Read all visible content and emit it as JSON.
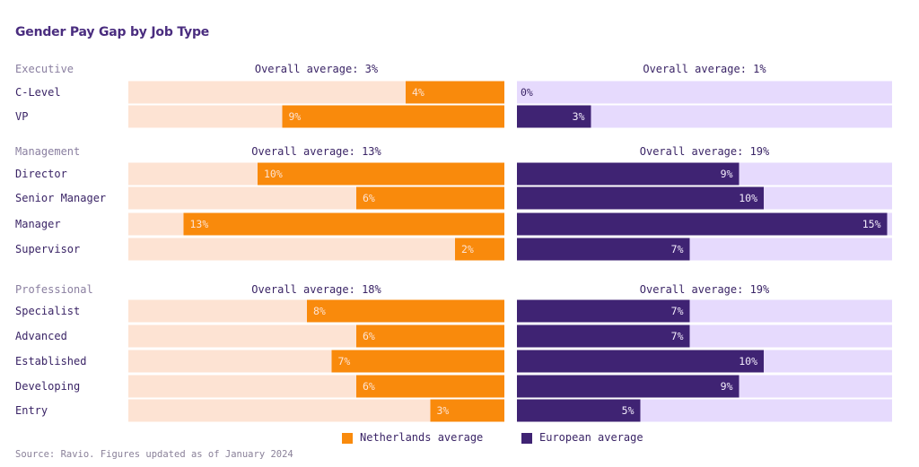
{
  "title": "Gender Pay Gap by Job Type",
  "legend": {
    "netherlands": "Netherlands average",
    "european": "European average"
  },
  "source": "Source: Ravio. Figures updated as of January 2024",
  "colors": {
    "nl_bar": "#f98a0c",
    "nl_track": "#fde3d3",
    "eu_bar": "#3f2373",
    "eu_track": "#e6dafd"
  },
  "chart_data": {
    "type": "bar",
    "orientation": "horizontal",
    "title": "Gender Pay Gap by Job Type",
    "value_unit": "%",
    "xlim": [
      0,
      16
    ],
    "series": [
      {
        "name": "Netherlands average",
        "direction": "right-to-left"
      },
      {
        "name": "European average",
        "direction": "left-to-right"
      }
    ],
    "groups": [
      {
        "name": "Executive",
        "nl_overall": "Overall average: 3%",
        "eu_overall": "Overall average: 1%",
        "rows": [
          {
            "label": "C-Level",
            "nl": 4,
            "eu": 0
          },
          {
            "label": "VP",
            "nl": 9,
            "eu": 3
          }
        ]
      },
      {
        "name": "Management",
        "nl_overall": "Overall average: 13%",
        "eu_overall": "Overall average: 19%",
        "rows": [
          {
            "label": "Director",
            "nl": 10,
            "eu": 9
          },
          {
            "label": "Senior Manager",
            "nl": 6,
            "eu": 10
          },
          {
            "label": "Manager",
            "nl": 13,
            "eu": 15
          },
          {
            "label": "Supervisor",
            "nl": 2,
            "eu": 7
          }
        ]
      },
      {
        "name": "Professional",
        "nl_overall": "Overall average: 18%",
        "eu_overall": "Overall average: 19%",
        "rows": [
          {
            "label": "Specialist",
            "nl": 8,
            "eu": 7
          },
          {
            "label": "Advanced",
            "nl": 6,
            "eu": 7
          },
          {
            "label": "Established",
            "nl": 7,
            "eu": 10
          },
          {
            "label": "Developing",
            "nl": 6,
            "eu": 9
          },
          {
            "label": "Entry",
            "nl": 3,
            "eu": 5
          }
        ]
      }
    ]
  }
}
